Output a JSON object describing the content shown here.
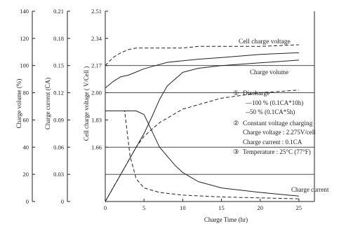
{
  "chart_data": {
    "type": "line",
    "xlabel": "Charge Time (hr)",
    "x_ticks": [
      "0",
      "5",
      "10",
      "15",
      "20",
      "25"
    ],
    "xlim": [
      0,
      27
    ],
    "axes": [
      {
        "label": "Charge volume (%)",
        "ticks": [
          "140",
          "120",
          "100",
          "80",
          "60",
          "40",
          "20",
          "0"
        ],
        "range": [
          0,
          140
        ]
      },
      {
        "label": "Charge current (CA)",
        "ticks": [
          "0.21",
          "0.18",
          "0.15",
          "0.12",
          "0.09",
          "0.06",
          "0.03",
          "0"
        ],
        "range": [
          0,
          0.21
        ]
      },
      {
        "label": "Cell charge voltage ( V/Cell )",
        "ticks": [
          "2.51",
          "2.34",
          "2.17",
          "2.00",
          "1.83",
          "1.66"
        ],
        "range": [
          1.32,
          2.51
        ]
      }
    ],
    "grid_lines_y_axis1": [
      20,
      40,
      80,
      100
    ],
    "series": [
      {
        "name": "Cell charge voltage",
        "style": "solid",
        "axis": 2,
        "x": [
          0,
          1,
          2,
          3,
          4,
          5,
          6.5,
          8,
          10,
          12,
          15,
          20,
          25
        ],
        "y": [
          2.03,
          2.07,
          2.1,
          2.11,
          2.13,
          2.15,
          2.17,
          2.19,
          2.2,
          2.21,
          2.22,
          2.24,
          2.25
        ]
      },
      {
        "name": "Cell charge voltage",
        "style": "dashed",
        "axis": 2,
        "x": [
          0,
          1,
          2,
          3,
          4,
          5,
          6.5,
          8,
          10,
          12,
          15,
          20,
          25
        ],
        "y": [
          2.17,
          2.22,
          2.25,
          2.27,
          2.28,
          2.28,
          2.28,
          2.28,
          2.28,
          2.29,
          2.29,
          2.29,
          2.3
        ]
      },
      {
        "name": "Charge volume",
        "style": "solid",
        "axis": 0,
        "x": [
          0,
          2,
          4,
          5,
          6,
          7,
          8,
          10,
          12,
          15,
          20,
          25
        ],
        "y": [
          0,
          20,
          40,
          50,
          62,
          75,
          85,
          95,
          98,
          100,
          102,
          104
        ]
      },
      {
        "name": "Charge volume",
        "style": "dashed",
        "axis": 0,
        "x": [
          0,
          1,
          2,
          3,
          4,
          5,
          7,
          10,
          15,
          20,
          25
        ],
        "y": [
          0,
          10,
          20,
          30,
          40,
          48,
          58,
          68,
          76,
          80,
          82
        ]
      },
      {
        "name": "Charge current",
        "style": "solid",
        "axis": 1,
        "x": [
          0,
          4,
          5,
          7,
          9,
          10,
          12,
          15,
          20,
          25
        ],
        "y": [
          0.1,
          0.1,
          0.096,
          0.06,
          0.04,
          0.032,
          0.022,
          0.015,
          0.01,
          0.006
        ]
      },
      {
        "name": "Charge current",
        "style": "dashed",
        "axis": 1,
        "x": [
          0,
          2.5,
          3.2,
          4,
          5,
          7,
          10,
          15,
          20,
          25
        ],
        "y": [
          0.1,
          0.1,
          0.05,
          0.025,
          0.015,
          0.01,
          0.007,
          0.005,
          0.004,
          0.003
        ]
      }
    ],
    "annotations": {
      "cell_voltage_label": "Cell charge voltage",
      "charge_volume_label": "Charge volume",
      "charge_current_label": "Charge current",
      "legend_items": [
        {
          "num": "①",
          "text": "Discharge"
        },
        {
          "num": "",
          "text": "—100 % (0.1CA*10h)"
        },
        {
          "num": "",
          "text": "--50  % (0.1CA*5h)"
        },
        {
          "num": "②",
          "text": "Constant voltage charging"
        },
        {
          "num": "",
          "text": "Charge voltage : 2.275V/cell"
        },
        {
          "num": "",
          "text": "Charge current : 0.1CA"
        },
        {
          "num": "③",
          "text": "Temperature : 25°C  (77°F)"
        }
      ]
    }
  }
}
